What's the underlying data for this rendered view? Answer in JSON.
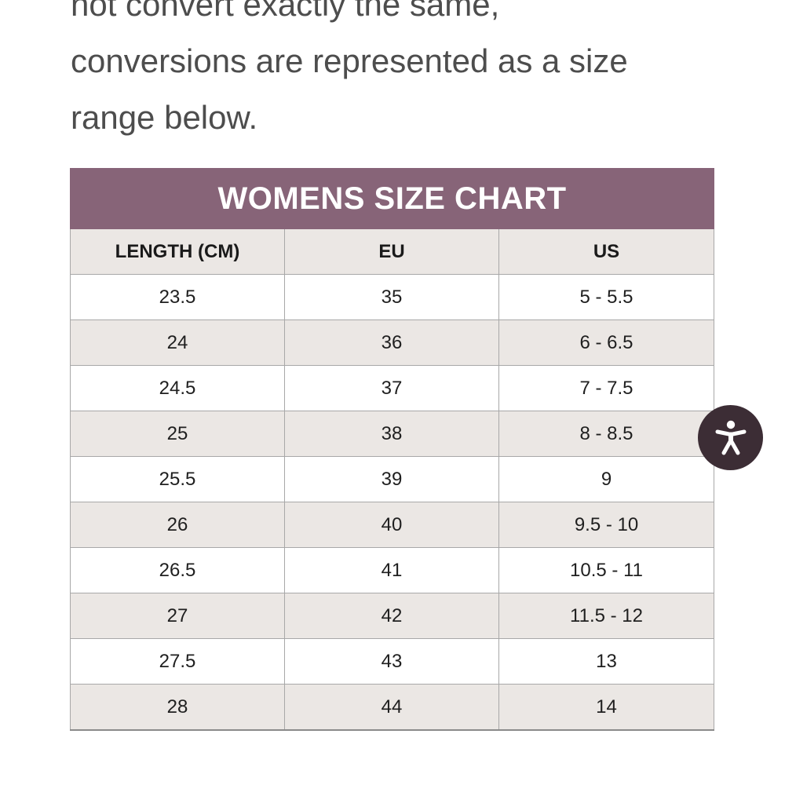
{
  "intro": {
    "line1": "not convert exactly the same,",
    "line2": "conversions are represented as a size",
    "line3": "range below."
  },
  "size_chart": {
    "title": "WOMENS SIZE CHART",
    "columns": [
      "LENGTH (CM)",
      "EU",
      "US"
    ],
    "rows": [
      [
        "23.5",
        "35",
        "5 - 5.5"
      ],
      [
        "24",
        "36",
        "6 - 6.5"
      ],
      [
        "24.5",
        "37",
        "7 - 7.5"
      ],
      [
        "25",
        "38",
        "8 - 8.5"
      ],
      [
        "25.5",
        "39",
        "9"
      ],
      [
        "26",
        "40",
        "9.5 - 10"
      ],
      [
        "26.5",
        "41",
        "10.5 - 11"
      ],
      [
        "27",
        "42",
        "11.5 - 12"
      ],
      [
        "27.5",
        "43",
        "13"
      ],
      [
        "28",
        "44",
        "14"
      ]
    ]
  },
  "accessibility_button": {
    "icon": "accessibility-person-icon"
  },
  "colors": {
    "title_band": "#876478",
    "stripe": "#ebe7e4",
    "accessibility_button": "#3c2d35",
    "body_text": "#4d4d4d"
  }
}
